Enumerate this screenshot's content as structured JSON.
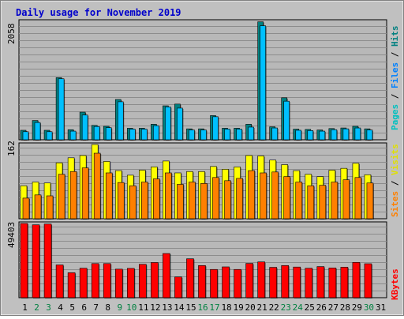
{
  "title": "Daily usage for November 2019",
  "colors": {
    "background": "#C0C0C0",
    "plot_bg": "#B8B8B8",
    "grid": "#8C8C8C",
    "title": "#0000CC",
    "pages": "#00E0E0",
    "pages_dark": "#00A0A0",
    "files": "#00C0FF",
    "hits": "#008080",
    "visits": "#FFFF00",
    "sites": "#FF8000",
    "kbytes": "#FF0000",
    "weekend_day": "#008040",
    "weekday": "#000000"
  },
  "right_labels": {
    "pages": "Pages",
    "files": "Files",
    "hits": "Hits",
    "sep": " / ",
    "visits": "Visits",
    "sites": "Sites",
    "kbytes": "KBytes"
  },
  "max_labels": {
    "hits": "2058",
    "visits": "162",
    "kbytes": "49403"
  },
  "chart_data": [
    {
      "type": "bar",
      "panel": "hits",
      "ylim": [
        0,
        2058
      ],
      "categories": [
        "1",
        "2",
        "3",
        "4",
        "5",
        "6",
        "7",
        "8",
        "9",
        "10",
        "11",
        "12",
        "13",
        "14",
        "15",
        "16",
        "17",
        "18",
        "19",
        "20",
        "21",
        "22",
        "23",
        "24",
        "25",
        "26",
        "27",
        "28",
        "29",
        "30",
        "31"
      ],
      "series": [
        {
          "name": "Hits",
          "values": [
            165,
            335,
            165,
            1080,
            175,
            480,
            250,
            235,
            700,
            200,
            200,
            270,
            590,
            620,
            190,
            190,
            420,
            200,
            200,
            270,
            2050,
            225,
            730,
            185,
            180,
            170,
            195,
            205,
            235,
            190,
            0
          ]
        },
        {
          "name": "Files",
          "values": [
            140,
            300,
            140,
            1060,
            150,
            430,
            230,
            210,
            660,
            185,
            185,
            245,
            570,
            550,
            170,
            170,
            400,
            185,
            185,
            220,
            1980,
            205,
            670,
            165,
            160,
            150,
            175,
            190,
            205,
            170,
            0
          ]
        },
        {
          "name": "Pages",
          "values": [
            0,
            0,
            0,
            0,
            0,
            0,
            0,
            0,
            0,
            0,
            0,
            0,
            0,
            0,
            0,
            0,
            0,
            0,
            0,
            0,
            0,
            0,
            0,
            0,
            0,
            0,
            0,
            0,
            0,
            0,
            0
          ]
        }
      ]
    },
    {
      "type": "bar",
      "panel": "visits",
      "ylim": [
        0,
        162
      ],
      "categories": [
        "1",
        "2",
        "3",
        "4",
        "5",
        "6",
        "7",
        "8",
        "9",
        "10",
        "11",
        "12",
        "13",
        "14",
        "15",
        "16",
        "17",
        "18",
        "19",
        "20",
        "21",
        "22",
        "23",
        "24",
        "25",
        "26",
        "27",
        "28",
        "29",
        "30",
        "31"
      ],
      "series": [
        {
          "name": "Visits",
          "values": [
            72,
            80,
            78,
            122,
            133,
            138,
            162,
            125,
            105,
            95,
            106,
            113,
            126,
            100,
            103,
            103,
            114,
            108,
            113,
            138,
            137,
            128,
            118,
            105,
            97,
            92,
            106,
            110,
            121,
            96,
            0
          ]
        },
        {
          "name": "Sites",
          "values": [
            45,
            52,
            50,
            97,
            103,
            111,
            143,
            100,
            79,
            72,
            80,
            87,
            100,
            75,
            80,
            77,
            90,
            83,
            88,
            105,
            100,
            102,
            92,
            80,
            72,
            73,
            80,
            85,
            90,
            78,
            0
          ]
        }
      ]
    },
    {
      "type": "bar",
      "panel": "kbytes",
      "ylim": [
        0,
        49403
      ],
      "categories": [
        "1",
        "2",
        "3",
        "4",
        "5",
        "6",
        "7",
        "8",
        "9",
        "10",
        "11",
        "12",
        "13",
        "14",
        "15",
        "16",
        "17",
        "18",
        "19",
        "20",
        "21",
        "22",
        "23",
        "24",
        "25",
        "26",
        "27",
        "28",
        "29",
        "30",
        "31"
      ],
      "series": [
        {
          "name": "KBytes",
          "values": [
            49400,
            48500,
            49000,
            21800,
            16600,
            19600,
            22700,
            22700,
            19000,
            19500,
            22200,
            23400,
            29400,
            13800,
            25900,
            21400,
            18800,
            20500,
            18800,
            22800,
            23800,
            20200,
            21400,
            20400,
            19600,
            20700,
            19800,
            20300,
            23500,
            22600,
            0
          ]
        }
      ]
    }
  ],
  "x_labels": [
    "1",
    "2",
    "3",
    "4",
    "5",
    "6",
    "7",
    "8",
    "9",
    "10",
    "11",
    "12",
    "13",
    "14",
    "15",
    "16",
    "17",
    "18",
    "19",
    "20",
    "21",
    "22",
    "23",
    "24",
    "25",
    "26",
    "27",
    "28",
    "29",
    "30",
    "31"
  ],
  "weekend_days": [
    "2",
    "3",
    "9",
    "10",
    "16",
    "17",
    "23",
    "24",
    "30"
  ]
}
